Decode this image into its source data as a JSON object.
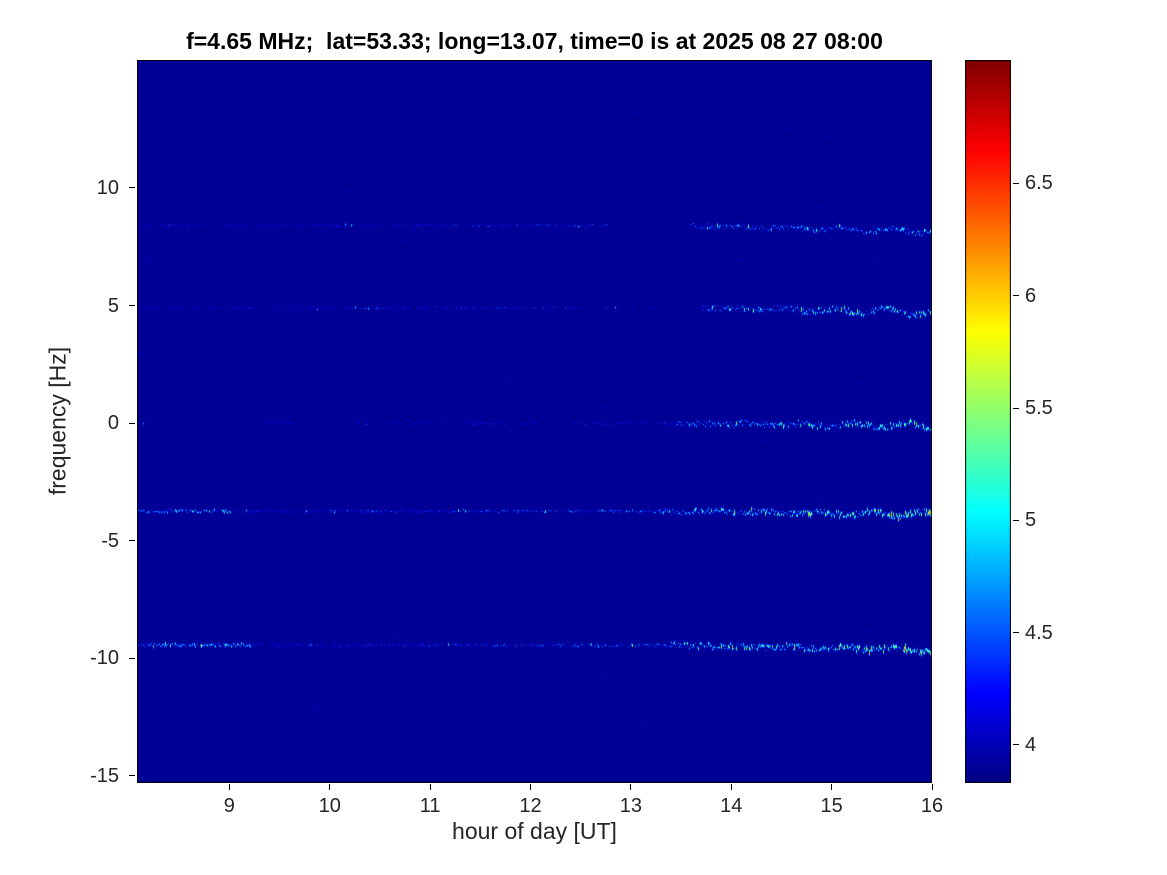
{
  "chart_data": {
    "type": "heatmap",
    "subtype": "doppler-spectrogram",
    "title": "f=4.65 MHz;  lat=53.33; long=13.07, time=0 is at 2025 08 27 08:00",
    "xlabel": "hour of day [UT]",
    "ylabel": "frequency [Hz]",
    "xlim": [
      8.08,
      16.0
    ],
    "ylim": [
      -15.3,
      15.44
    ],
    "xticks": [
      9,
      10,
      11,
      12,
      13,
      14,
      15,
      16
    ],
    "yticks": [
      10,
      5,
      0,
      -5,
      -10,
      -15
    ],
    "grid": false,
    "colormap": "jet",
    "background_value": 3.9,
    "colorbar": {
      "position": "right",
      "vmin": 3.83,
      "vmax": 7.05,
      "ticks": [
        4,
        4.5,
        5,
        5.5,
        6,
        6.5
      ]
    },
    "speckle_noise": {
      "count": 320,
      "v0": 3.88,
      "v1": 4.35
    },
    "spectral_lines": [
      {
        "freq": 8.42,
        "segments": [
          {
            "x0": 8.08,
            "x1": 12.75,
            "density": 0.55,
            "v0": 4.05,
            "v1": 4.75,
            "spread": 1,
            "jitter": 1.2,
            "wave": 0,
            "spike": 0.02,
            "drift": 0
          },
          {
            "x0": 12.75,
            "x1": 13.6,
            "density": 0.12,
            "v0": 4.0,
            "v1": 4.4,
            "spread": 1,
            "jitter": 1.0,
            "wave": 0,
            "spike": 0.0,
            "drift": 0
          },
          {
            "x0": 13.6,
            "x1": 16.0,
            "density": 0.92,
            "v0": 4.2,
            "v1": 5.6,
            "spread": 2,
            "jitter": 2.5,
            "wave": 2.5,
            "spike": 0.06,
            "drift": -0.25
          }
        ]
      },
      {
        "freq": 4.92,
        "segments": [
          {
            "x0": 8.08,
            "x1": 12.9,
            "density": 0.5,
            "v0": 4.05,
            "v1": 4.7,
            "spread": 1,
            "jitter": 1.2,
            "wave": 0,
            "spike": 0.02,
            "drift": 0
          },
          {
            "x0": 12.9,
            "x1": 13.7,
            "density": 0.1,
            "v0": 4.0,
            "v1": 4.4,
            "spread": 1,
            "jitter": 1.0,
            "wave": 0,
            "spike": 0.0,
            "drift": 0
          },
          {
            "x0": 13.7,
            "x1": 16.0,
            "density": 0.95,
            "v0": 4.3,
            "v1": 5.8,
            "spread": 2,
            "jitter": 3.0,
            "wave": 4,
            "spike": 0.08,
            "drift": -0.2
          }
        ]
      },
      {
        "freq": 0.0,
        "segments": [
          {
            "x0": 8.08,
            "x1": 13.45,
            "density": 0.4,
            "v0": 4.0,
            "v1": 4.6,
            "spread": 1,
            "jitter": 1.0,
            "wave": 0,
            "spike": 0.01,
            "drift": 0
          },
          {
            "x0": 13.45,
            "x1": 16.0,
            "density": 0.95,
            "v0": 4.3,
            "v1": 6.0,
            "spread": 2,
            "jitter": 3.0,
            "wave": 3,
            "spike": 0.1,
            "drift": -0.1
          }
        ]
      },
      {
        "freq": -3.72,
        "segments": [
          {
            "x0": 8.08,
            "x1": 9.0,
            "density": 0.85,
            "v0": 4.2,
            "v1": 5.6,
            "spread": 1,
            "jitter": 1.5,
            "wave": 0,
            "spike": 0.1,
            "drift": 0
          },
          {
            "x0": 9.0,
            "x1": 13.3,
            "density": 0.65,
            "v0": 4.05,
            "v1": 5.0,
            "spread": 1,
            "jitter": 1.2,
            "wave": 0,
            "spike": 0.04,
            "drift": 0
          },
          {
            "x0": 13.3,
            "x1": 16.0,
            "density": 0.97,
            "v0": 4.4,
            "v1": 6.2,
            "spread": 3,
            "jitter": 3.0,
            "wave": 3,
            "spike": 0.12,
            "drift": -0.15
          }
        ]
      },
      {
        "freq": -9.42,
        "segments": [
          {
            "x0": 8.08,
            "x1": 9.2,
            "density": 0.9,
            "v0": 4.2,
            "v1": 5.8,
            "spread": 2,
            "jitter": 1.5,
            "wave": 0,
            "spike": 0.12,
            "drift": 0
          },
          {
            "x0": 9.2,
            "x1": 13.4,
            "density": 0.7,
            "v0": 4.05,
            "v1": 5.0,
            "spread": 1,
            "jitter": 1.2,
            "wave": 0,
            "spike": 0.05,
            "drift": 0
          },
          {
            "x0": 13.4,
            "x1": 16.0,
            "density": 0.97,
            "v0": 4.4,
            "v1": 6.3,
            "spread": 3,
            "jitter": 3.0,
            "wave": 2,
            "spike": 0.12,
            "drift": -0.2
          }
        ]
      }
    ]
  }
}
